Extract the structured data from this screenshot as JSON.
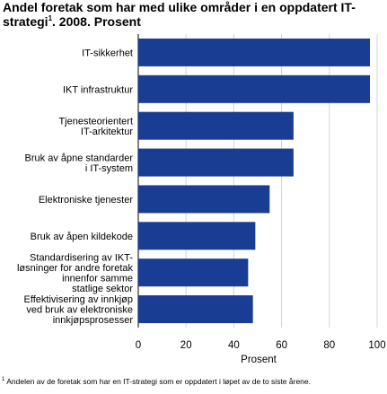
{
  "chart_data": {
    "type": "bar",
    "orientation": "horizontal",
    "title": "Andel foretak som har med ulike områder i en oppdatert IT-strategi",
    "title_marker": "1",
    "title_suffix": ". 2008. Prosent",
    "categories": [
      "IT-sikkerhet",
      "IKT infrastruktur",
      "Tjenesteorientert IT-arkitektur",
      "Bruk av åpne standarder i IT-system",
      "Elektroniske tjenester",
      "Bruk av åpen kildekode",
      "Standardisering av IKT-løsninger for andre foretak innenfor samme statlige sektor",
      "Effektivisering av innkjøp ved bruk av elektroniske innkjøpsprosesser"
    ],
    "category_lines": [
      [
        "IT-sikkerhet"
      ],
      [
        "IKT infrastruktur"
      ],
      [
        "Tjenesteorientert",
        "IT-arkitektur"
      ],
      [
        "Bruk av åpne standarder",
        "i IT-system"
      ],
      [
        "Elektroniske tjenester"
      ],
      [
        "Bruk av åpen kildekode"
      ],
      [
        "Standardisering av IKT-",
        "løsninger for andre foretak",
        "innenfor samme",
        "statlige sektor"
      ],
      [
        "Effektivisering av innkjøp",
        "ved bruk av elektroniske",
        "innkjøpsprosesser"
      ]
    ],
    "values": [
      97,
      97,
      65,
      65,
      55,
      49,
      46,
      48
    ],
    "xlabel": "Prosent",
    "ylabel": "",
    "xlim": [
      0,
      100
    ],
    "xticks": [
      0,
      20,
      40,
      60,
      80,
      100
    ],
    "grid": true,
    "bar_color": "#1a3d94",
    "grid_color": "#d4d4d4",
    "footnote_marker": "1",
    "footnote": " Andelen av de foretak som har en IT-strategi som er oppdatert i løpet av de to siste årene."
  }
}
